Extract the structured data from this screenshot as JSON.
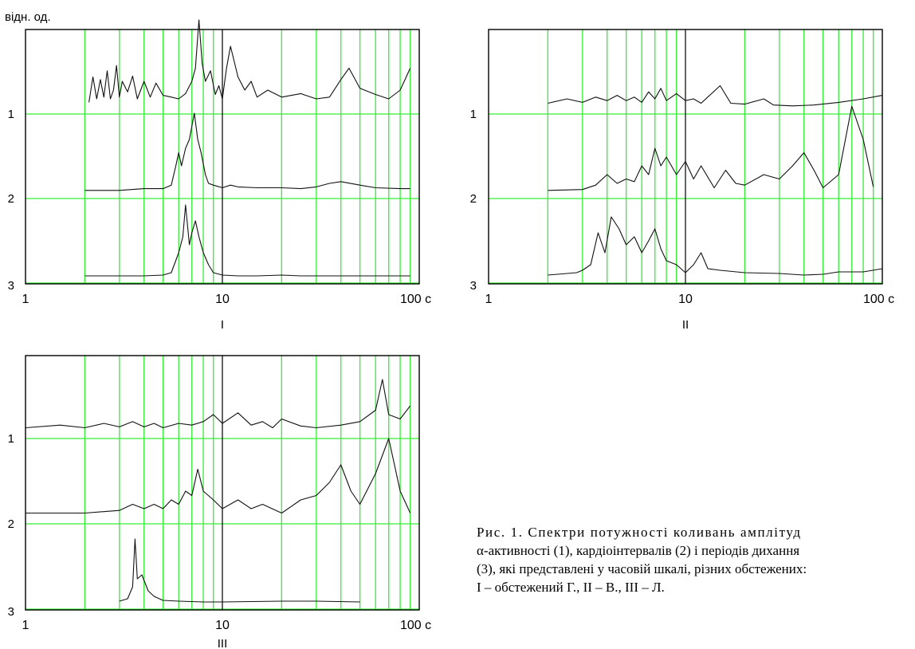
{
  "y_unit_label": "відн. од.",
  "caption": {
    "line1": "Рис. 1. Спектри потужності коливань амплітуд",
    "line2": "α-активності (1), кардіоінтервалів (2) і періодів дихання",
    "line3": "(3), які представлені у часовій шкалі, різних обстежених:",
    "line4": "I – обстежений Г.,  II – В., III – Л."
  },
  "colors": {
    "grid": "#33ee33",
    "frame": "#000000",
    "decade_line": "#222222",
    "trace": "#111111"
  },
  "chart_data": [
    {
      "type": "line",
      "panel_label": "I",
      "x_scale": "log",
      "xlim": [
        1,
        100
      ],
      "x_ticks": [
        1,
        10,
        100
      ],
      "x_tick_labels": [
        "1",
        "10",
        "100 с"
      ],
      "row_labels": [
        "1",
        "2",
        "3"
      ],
      "grid": true,
      "series": [
        {
          "row": "1",
          "values": [
            [
              2.1,
              0.06
            ],
            [
              2.2,
              0.35
            ],
            [
              2.3,
              0.1
            ],
            [
              2.4,
              0.32
            ],
            [
              2.5,
              0.12
            ],
            [
              2.6,
              0.42
            ],
            [
              2.7,
              0.1
            ],
            [
              2.8,
              0.2
            ],
            [
              2.9,
              0.48
            ],
            [
              3.0,
              0.12
            ],
            [
              3.1,
              0.3
            ],
            [
              3.3,
              0.18
            ],
            [
              3.5,
              0.36
            ],
            [
              3.7,
              0.1
            ],
            [
              4.0,
              0.3
            ],
            [
              4.3,
              0.12
            ],
            [
              4.6,
              0.28
            ],
            [
              5.0,
              0.14
            ],
            [
              5.5,
              0.12
            ],
            [
              6.0,
              0.1
            ],
            [
              6.5,
              0.16
            ],
            [
              7.0,
              0.3
            ],
            [
              7.3,
              0.45
            ],
            [
              7.6,
              1.0
            ],
            [
              7.9,
              0.5
            ],
            [
              8.2,
              0.3
            ],
            [
              8.7,
              0.42
            ],
            [
              9.2,
              0.15
            ],
            [
              9.6,
              0.25
            ],
            [
              10.0,
              0.1
            ],
            [
              10.5,
              0.45
            ],
            [
              11.0,
              0.7
            ],
            [
              12.0,
              0.35
            ],
            [
              13,
              0.2
            ],
            [
              14,
              0.3
            ],
            [
              15,
              0.12
            ],
            [
              17,
              0.2
            ],
            [
              20,
              0.12
            ],
            [
              25,
              0.16
            ],
            [
              30,
              0.1
            ],
            [
              35,
              0.12
            ],
            [
              40,
              0.32
            ],
            [
              44,
              0.45
            ],
            [
              50,
              0.22
            ],
            [
              60,
              0.15
            ],
            [
              70,
              0.1
            ],
            [
              80,
              0.2
            ],
            [
              90,
              0.45
            ]
          ]
        },
        {
          "row": "2",
          "values": [
            [
              2.0,
              0.02
            ],
            [
              3,
              0.02
            ],
            [
              4,
              0.04
            ],
            [
              5,
              0.04
            ],
            [
              5.5,
              0.08
            ],
            [
              5.8,
              0.3
            ],
            [
              6.0,
              0.45
            ],
            [
              6.2,
              0.3
            ],
            [
              6.5,
              0.5
            ],
            [
              6.8,
              0.6
            ],
            [
              7.0,
              0.75
            ],
            [
              7.2,
              0.9
            ],
            [
              7.5,
              0.6
            ],
            [
              7.8,
              0.45
            ],
            [
              8.2,
              0.2
            ],
            [
              8.5,
              0.1
            ],
            [
              9,
              0.08
            ],
            [
              10,
              0.05
            ],
            [
              11,
              0.08
            ],
            [
              12,
              0.06
            ],
            [
              15,
              0.05
            ],
            [
              20,
              0.05
            ],
            [
              25,
              0.04
            ],
            [
              30,
              0.06
            ],
            [
              35,
              0.1
            ],
            [
              40,
              0.12
            ],
            [
              50,
              0.08
            ],
            [
              60,
              0.05
            ],
            [
              80,
              0.04
            ],
            [
              90,
              0.04
            ]
          ]
        },
        {
          "row": "3",
          "values": [
            [
              2.0,
              0.01
            ],
            [
              3,
              0.01
            ],
            [
              4,
              0.01
            ],
            [
              5,
              0.02
            ],
            [
              5.5,
              0.05
            ],
            [
              6.0,
              0.3
            ],
            [
              6.3,
              0.5
            ],
            [
              6.5,
              0.9
            ],
            [
              6.8,
              0.4
            ],
            [
              7.0,
              0.55
            ],
            [
              7.3,
              0.7
            ],
            [
              7.6,
              0.5
            ],
            [
              8.0,
              0.3
            ],
            [
              8.5,
              0.15
            ],
            [
              9,
              0.05
            ],
            [
              10,
              0.02
            ],
            [
              12,
              0.01
            ],
            [
              15,
              0.01
            ],
            [
              20,
              0.02
            ],
            [
              25,
              0.01
            ],
            [
              40,
              0.01
            ],
            [
              60,
              0.01
            ],
            [
              90,
              0.01
            ]
          ]
        }
      ]
    },
    {
      "type": "line",
      "panel_label": "II",
      "x_scale": "log",
      "xlim": [
        1,
        100
      ],
      "x_ticks": [
        1,
        10,
        100
      ],
      "x_tick_labels": [
        "1",
        "10",
        "100 с"
      ],
      "row_labels": [
        "1",
        "2",
        "3"
      ],
      "grid": true,
      "series": [
        {
          "row": "1",
          "values": [
            [
              2.0,
              0.05
            ],
            [
              2.5,
              0.1
            ],
            [
              3.0,
              0.06
            ],
            [
              3.5,
              0.12
            ],
            [
              4.0,
              0.08
            ],
            [
              4.5,
              0.14
            ],
            [
              5.0,
              0.08
            ],
            [
              5.5,
              0.12
            ],
            [
              6.0,
              0.06
            ],
            [
              6.5,
              0.18
            ],
            [
              7.0,
              0.1
            ],
            [
              7.5,
              0.22
            ],
            [
              8.0,
              0.08
            ],
            [
              9.0,
              0.16
            ],
            [
              10,
              0.08
            ],
            [
              11,
              0.1
            ],
            [
              12,
              0.05
            ],
            [
              15,
              0.25
            ],
            [
              17,
              0.05
            ],
            [
              20,
              0.04
            ],
            [
              25,
              0.1
            ],
            [
              28,
              0.03
            ],
            [
              35,
              0.02
            ],
            [
              45,
              0.03
            ],
            [
              60,
              0.06
            ],
            [
              80,
              0.1
            ],
            [
              100,
              0.14
            ]
          ]
        },
        {
          "row": "2",
          "values": [
            [
              2.0,
              0.02
            ],
            [
              3.0,
              0.03
            ],
            [
              3.5,
              0.08
            ],
            [
              4.0,
              0.2
            ],
            [
              4.5,
              0.1
            ],
            [
              5.0,
              0.15
            ],
            [
              5.5,
              0.12
            ],
            [
              6.0,
              0.3
            ],
            [
              6.5,
              0.2
            ],
            [
              7.0,
              0.5
            ],
            [
              7.5,
              0.3
            ],
            [
              8.0,
              0.4
            ],
            [
              9.0,
              0.2
            ],
            [
              10,
              0.35
            ],
            [
              11,
              0.15
            ],
            [
              12,
              0.3
            ],
            [
              14,
              0.05
            ],
            [
              16,
              0.25
            ],
            [
              18,
              0.1
            ],
            [
              20,
              0.08
            ],
            [
              25,
              0.2
            ],
            [
              30,
              0.15
            ],
            [
              35,
              0.3
            ],
            [
              40,
              0.45
            ],
            [
              45,
              0.25
            ],
            [
              50,
              0.05
            ],
            [
              60,
              0.2
            ],
            [
              70,
              0.98
            ],
            [
              80,
              0.6
            ],
            [
              90,
              0.06
            ]
          ]
        },
        {
          "row": "3",
          "values": [
            [
              2.0,
              0.02
            ],
            [
              2.8,
              0.05
            ],
            [
              3.0,
              0.08
            ],
            [
              3.3,
              0.15
            ],
            [
              3.6,
              0.55
            ],
            [
              3.9,
              0.3
            ],
            [
              4.2,
              0.75
            ],
            [
              4.6,
              0.6
            ],
            [
              5.0,
              0.4
            ],
            [
              5.5,
              0.5
            ],
            [
              6.0,
              0.3
            ],
            [
              6.5,
              0.45
            ],
            [
              7.0,
              0.6
            ],
            [
              7.5,
              0.35
            ],
            [
              8.0,
              0.2
            ],
            [
              9.0,
              0.15
            ],
            [
              10,
              0.05
            ],
            [
              11,
              0.15
            ],
            [
              12,
              0.3
            ],
            [
              13,
              0.1
            ],
            [
              15,
              0.08
            ],
            [
              20,
              0.05
            ],
            [
              30,
              0.04
            ],
            [
              40,
              0.02
            ],
            [
              50,
              0.03
            ],
            [
              60,
              0.06
            ],
            [
              80,
              0.06
            ],
            [
              100,
              0.1
            ]
          ]
        }
      ]
    },
    {
      "type": "line",
      "panel_label": "III",
      "x_scale": "log",
      "xlim": [
        1,
        100
      ],
      "x_ticks": [
        1,
        10,
        100
      ],
      "x_tick_labels": [
        "1",
        "10",
        "100 с"
      ],
      "row_labels": [
        "1",
        "2",
        "3"
      ],
      "grid": true,
      "series": [
        {
          "row": "1",
          "values": [
            [
              1.0,
              0.05
            ],
            [
              1.5,
              0.08
            ],
            [
              2.0,
              0.05
            ],
            [
              2.5,
              0.1
            ],
            [
              3.0,
              0.06
            ],
            [
              3.5,
              0.12
            ],
            [
              4.0,
              0.06
            ],
            [
              4.5,
              0.1
            ],
            [
              5.0,
              0.05
            ],
            [
              6.0,
              0.1
            ],
            [
              7.0,
              0.08
            ],
            [
              8.0,
              0.12
            ],
            [
              9.0,
              0.2
            ],
            [
              10,
              0.1
            ],
            [
              12,
              0.22
            ],
            [
              14,
              0.08
            ],
            [
              16,
              0.12
            ],
            [
              18,
              0.05
            ],
            [
              20,
              0.15
            ],
            [
              25,
              0.07
            ],
            [
              30,
              0.05
            ],
            [
              40,
              0.08
            ],
            [
              50,
              0.12
            ],
            [
              60,
              0.25
            ],
            [
              65,
              0.6
            ],
            [
              70,
              0.2
            ],
            [
              80,
              0.15
            ],
            [
              90,
              0.3
            ]
          ]
        },
        {
          "row": "2",
          "values": [
            [
              1.0,
              0.05
            ],
            [
              2.0,
              0.05
            ],
            [
              3.0,
              0.08
            ],
            [
              3.5,
              0.15
            ],
            [
              4.0,
              0.1
            ],
            [
              4.5,
              0.15
            ],
            [
              5.0,
              0.1
            ],
            [
              5.5,
              0.2
            ],
            [
              6.0,
              0.15
            ],
            [
              6.5,
              0.3
            ],
            [
              7.0,
              0.25
            ],
            [
              7.5,
              0.55
            ],
            [
              8.0,
              0.3
            ],
            [
              9.0,
              0.2
            ],
            [
              10,
              0.1
            ],
            [
              12,
              0.2
            ],
            [
              14,
              0.1
            ],
            [
              16,
              0.15
            ],
            [
              20,
              0.05
            ],
            [
              25,
              0.2
            ],
            [
              30,
              0.25
            ],
            [
              35,
              0.4
            ],
            [
              40,
              0.6
            ],
            [
              45,
              0.3
            ],
            [
              50,
              0.15
            ],
            [
              60,
              0.5
            ],
            [
              70,
              0.9
            ],
            [
              80,
              0.3
            ],
            [
              90,
              0.05
            ]
          ]
        },
        {
          "row": "3",
          "values": [
            [
              3.0,
              0.02
            ],
            [
              3.3,
              0.05
            ],
            [
              3.5,
              0.2
            ],
            [
              3.6,
              0.8
            ],
            [
              3.7,
              0.3
            ],
            [
              3.9,
              0.35
            ],
            [
              4.2,
              0.15
            ],
            [
              4.5,
              0.08
            ],
            [
              5,
              0.03
            ],
            [
              6,
              0.02
            ],
            [
              8,
              0.01
            ],
            [
              10,
              0.01
            ],
            [
              20,
              0.02
            ],
            [
              30,
              0.02
            ],
            [
              50,
              0.01
            ]
          ]
        }
      ]
    }
  ]
}
